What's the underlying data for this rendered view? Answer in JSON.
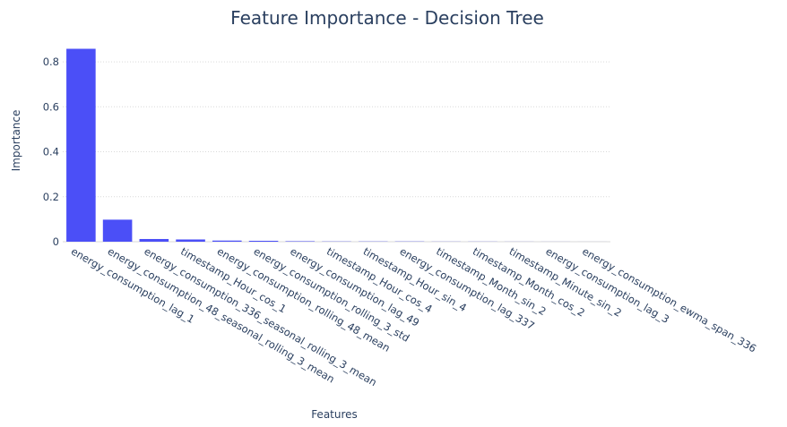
{
  "chart_data": {
    "type": "bar",
    "title": "Feature Importance - Decision Tree",
    "xlabel": "Features",
    "ylabel": "Importance",
    "ylim": [
      0,
      0.86
    ],
    "yticks": [
      0,
      0.2,
      0.4,
      0.6,
      0.8
    ],
    "ytick_labels": [
      "0",
      "0.2",
      "0.4",
      "0.6",
      "0.8"
    ],
    "grid": true,
    "bar_color": "#4b4ff7",
    "text_color": "#2a3f5f",
    "categories": [
      "energy_consumption_lag_1",
      "energy_consumption_48_seasonal_rolling_3_mean",
      "energy_consumption_336_seasonal_rolling_3_mean",
      "timestamp_Hour_cos_1",
      "energy_consumption_rolling_48_mean",
      "energy_consumption_rolling_3_std",
      "energy_consumption_lag_49",
      "timestamp_Hour_cos_4",
      "timestamp_Hour_sin_4",
      "energy_consumption_lag_337",
      "timestamp_Month_sin_2",
      "timestamp_Month_cos_2",
      "timestamp_Minute_sin_2",
      "energy_consumption_lag_3",
      "energy_consumption_ewma_span_336"
    ],
    "values": [
      0.858,
      0.098,
      0.012,
      0.01,
      0.005,
      0.004,
      0.002,
      0.001,
      0.001,
      0.001,
      0.0005,
      0.0005,
      0.0003,
      0.0002,
      0.0001
    ]
  }
}
